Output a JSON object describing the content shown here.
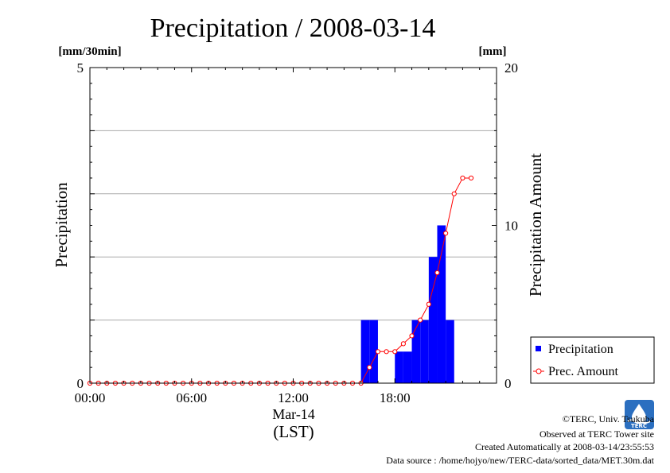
{
  "chart_data": {
    "type": "bar",
    "title": "Precipitation / 2008-03-14",
    "left_unit": "[mm/30min]",
    "right_unit": "[mm]",
    "ylabel": "Precipitation",
    "ylabel_right": "Precipitation Amount",
    "ylim": [
      0,
      5
    ],
    "ylim_right": [
      0,
      20
    ],
    "left_ticks": [
      "0",
      "5"
    ],
    "right_ticks": [
      "0",
      "10",
      "20"
    ],
    "x_ticks": [
      "00:00",
      "06:00",
      "12:00",
      "18:00"
    ],
    "xlabel_date": "Mar-14",
    "xlabel_lst": "(LST)",
    "xlim_hours": [
      0,
      24
    ],
    "grid_y": [
      1,
      2,
      3,
      4
    ],
    "legend_position": "bottom-right",
    "series": [
      {
        "name": "Precipitation",
        "kind": "bar",
        "color": "#0000ff",
        "x_hours": [
          16,
          16.5,
          18,
          18.5,
          19,
          19.5,
          20,
          20.5,
          21
        ],
        "values": [
          1.0,
          1.0,
          0.5,
          0.5,
          1.0,
          1.0,
          2.0,
          2.5,
          1.0
        ]
      },
      {
        "name": "Prec. Amount",
        "kind": "line",
        "color": "#ff0000",
        "x_hours": [
          0,
          0.5,
          1,
          1.5,
          2,
          2.5,
          3,
          3.5,
          4,
          4.5,
          5,
          5.5,
          6,
          6.5,
          7,
          7.5,
          8,
          8.5,
          9,
          9.5,
          10,
          10.5,
          11,
          11.5,
          12,
          12.5,
          13,
          13.5,
          14,
          14.5,
          15,
          15.5,
          16,
          16.5,
          17,
          17.5,
          18,
          18.5,
          19,
          19.5,
          20,
          20.5,
          21,
          21.5,
          22,
          22.5
        ],
        "values": [
          0,
          0,
          0,
          0,
          0,
          0,
          0,
          0,
          0,
          0,
          0,
          0,
          0,
          0,
          0,
          0,
          0,
          0,
          0,
          0,
          0,
          0,
          0,
          0,
          0,
          0,
          0,
          0,
          0,
          0,
          0,
          0,
          0,
          1,
          2,
          2,
          2,
          2.5,
          3,
          4,
          5,
          7,
          9.5,
          12,
          13,
          13
        ]
      }
    ]
  },
  "footer": {
    "copyright": "©TERC, Univ. Tsukuba",
    "observed": "Observed at TERC Tower site",
    "created": "Created Automatically at 2008-03-14/23:55:53",
    "source": "Data source : /home/hojyo/new/TERC-data/sorted_data/MET.30m.dat",
    "logo_text": "TERC"
  }
}
